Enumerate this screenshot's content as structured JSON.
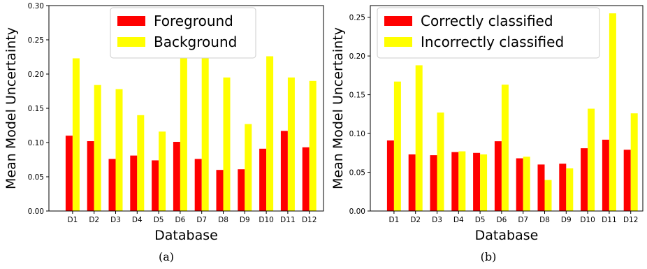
{
  "captions": [
    "(a)",
    "(b)"
  ],
  "colors": {
    "series1": "#ff0000",
    "series2": "#ffff00"
  },
  "chart_data": [
    {
      "type": "bar",
      "categories": [
        "D1",
        "D2",
        "D3",
        "D4",
        "D5",
        "D6",
        "D7",
        "D8",
        "D9",
        "D10",
        "D11",
        "D12"
      ],
      "series": [
        {
          "name": "Foreground",
          "color": "#ff0000",
          "values": [
            0.11,
            0.102,
            0.076,
            0.081,
            0.074,
            0.101,
            0.076,
            0.06,
            0.061,
            0.091,
            0.117,
            0.093
          ]
        },
        {
          "name": "Background",
          "color": "#ffff00",
          "values": [
            0.223,
            0.184,
            0.178,
            0.14,
            0.116,
            0.247,
            0.29,
            0.195,
            0.127,
            0.226,
            0.195,
            0.19
          ]
        }
      ],
      "xlabel": "Database",
      "ylabel": "Mean Model Uncertainty",
      "ylim": [
        0,
        0.3
      ],
      "yticks": [
        0.0,
        0.05,
        0.1,
        0.15,
        0.2,
        0.25,
        0.3
      ],
      "ytick_labels": [
        "0.00",
        "0.05",
        "0.10",
        "0.15",
        "0.20",
        "0.25",
        "0.30"
      ],
      "legend_position": "top-center",
      "grid": false
    },
    {
      "type": "bar",
      "categories": [
        "D1",
        "D2",
        "D3",
        "D4",
        "D5",
        "D6",
        "D7",
        "D8",
        "D9",
        "D10",
        "D11",
        "D12"
      ],
      "series": [
        {
          "name": "Correctly classified",
          "color": "#ff0000",
          "values": [
            0.091,
            0.073,
            0.072,
            0.076,
            0.075,
            0.09,
            0.068,
            0.06,
            0.061,
            0.081,
            0.092,
            0.079
          ]
        },
        {
          "name": "Incorrectly classified",
          "color": "#ffff00",
          "values": [
            0.167,
            0.188,
            0.127,
            0.077,
            0.073,
            0.163,
            0.07,
            0.04,
            0.055,
            0.132,
            0.255,
            0.126
          ]
        }
      ],
      "xlabel": "Database",
      "ylabel": "Mean Model Uncertainty",
      "ylim": [
        0,
        0.265
      ],
      "yticks": [
        0.0,
        0.05,
        0.1,
        0.15,
        0.2,
        0.25
      ],
      "ytick_labels": [
        "0.00",
        "0.05",
        "0.10",
        "0.15",
        "0.20",
        "0.25"
      ],
      "legend_position": "top-left",
      "grid": false
    }
  ]
}
